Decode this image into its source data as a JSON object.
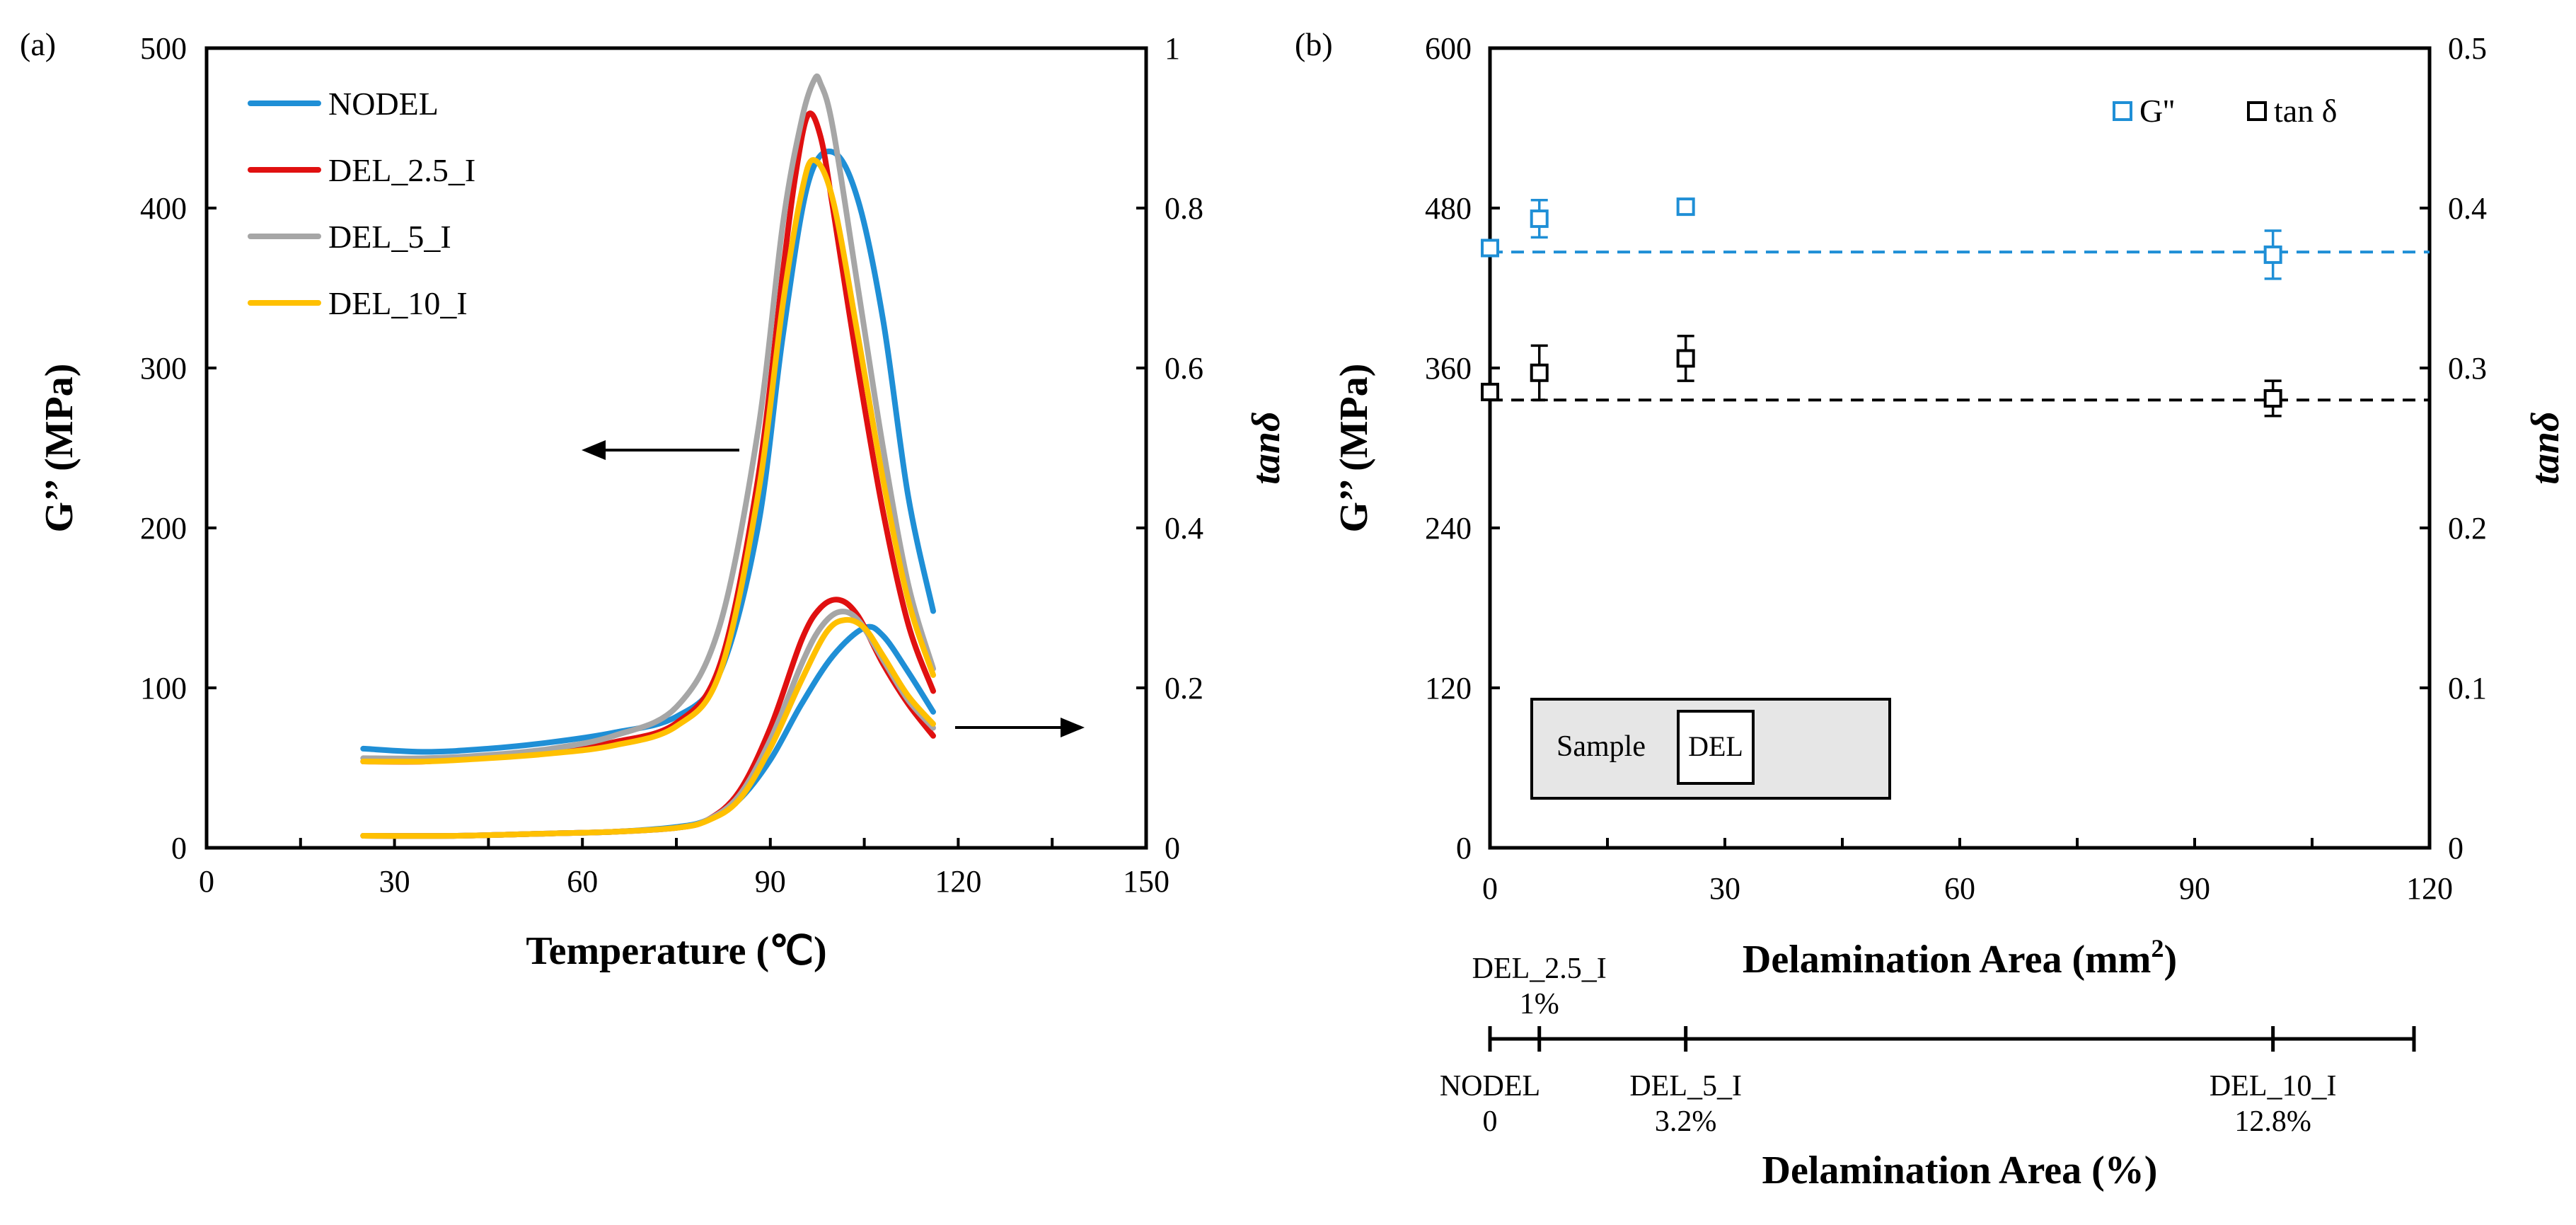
{
  "chart_data": [
    {
      "panel": "(a)",
      "type": "line",
      "title": "",
      "xlabel": "Temperature (℃)",
      "ylabel": "G’’ (MPa)",
      "y2label": "tanδ",
      "xlim": [
        0,
        150
      ],
      "xticks": [
        0,
        30,
        60,
        90,
        120,
        150
      ],
      "ylim": [
        0,
        500
      ],
      "yticks": [
        0,
        100,
        200,
        300,
        400,
        500
      ],
      "y2lim": [
        0,
        1
      ],
      "y2ticks": [
        "0",
        "0.2",
        "0.4",
        "0.6",
        "0.8",
        "1"
      ],
      "legend_position": "top-left",
      "legend": [
        "NODEL",
        "DEL_2.5_I",
        "DEL_5_I",
        "DEL_10_I"
      ],
      "colors": {
        "NODEL": "#1F8FD6",
        "DEL_2.5_I": "#E01010",
        "DEL_5_I": "#A6A6A6",
        "DEL_10_I": "#FFC000"
      },
      "annotations": [
        "arrow pointing left (G’’ curves use left axis)",
        "arrow pointing right (tanδ curves use right axis)"
      ],
      "series": [
        {
          "name": "NODEL",
          "axis": "left",
          "color": "#1F8FD6",
          "x": [
            25,
            35,
            45,
            55,
            65,
            75,
            82,
            88,
            92,
            96,
            100,
            104,
            108,
            112,
            116
          ],
          "y": [
            62,
            60,
            62,
            66,
            72,
            82,
            110,
            200,
            320,
            415,
            435,
            405,
            330,
            220,
            148
          ]
        },
        {
          "name": "DEL_2.5_I",
          "axis": "left",
          "color": "#E01010",
          "x": [
            25,
            35,
            45,
            55,
            65,
            75,
            82,
            88,
            92,
            94,
            96,
            98,
            100,
            104,
            108,
            112,
            116
          ],
          "y": [
            54,
            54,
            57,
            60,
            66,
            78,
            115,
            230,
            360,
            420,
            458,
            445,
            400,
            300,
            210,
            140,
            98
          ]
        },
        {
          "name": "DEL_5_I",
          "axis": "left",
          "color": "#A6A6A6",
          "x": [
            25,
            35,
            45,
            55,
            65,
            75,
            82,
            88,
            92,
            95,
            97,
            98,
            100,
            104,
            108,
            112,
            116
          ],
          "y": [
            56,
            56,
            58,
            62,
            70,
            88,
            140,
            260,
            390,
            455,
            480,
            478,
            450,
            350,
            250,
            165,
            112
          ]
        },
        {
          "name": "DEL_10_I",
          "axis": "left",
          "color": "#FFC000",
          "x": [
            25,
            35,
            45,
            55,
            65,
            75,
            82,
            88,
            92,
            95,
            97,
            100,
            104,
            108,
            112,
            116
          ],
          "y": [
            54,
            54,
            56,
            59,
            64,
            76,
            110,
            220,
            340,
            410,
            430,
            405,
            320,
            230,
            155,
            108
          ]
        },
        {
          "name": "NODEL",
          "axis": "right",
          "color": "#1F8FD6",
          "x": [
            25,
            40,
            55,
            65,
            75,
            80,
            85,
            90,
            95,
            100,
            105,
            108,
            112,
            116
          ],
          "y": [
            0.015,
            0.015,
            0.018,
            0.02,
            0.026,
            0.035,
            0.06,
            0.11,
            0.18,
            0.24,
            0.275,
            0.265,
            0.22,
            0.17
          ]
        },
        {
          "name": "DEL_2.5_I",
          "axis": "right",
          "color": "#E01010",
          "x": [
            25,
            40,
            55,
            65,
            75,
            80,
            85,
            90,
            95,
            98,
            101,
            104,
            108,
            112,
            116
          ],
          "y": [
            0.015,
            0.015,
            0.018,
            0.02,
            0.025,
            0.035,
            0.07,
            0.15,
            0.26,
            0.3,
            0.31,
            0.29,
            0.23,
            0.18,
            0.14
          ]
        },
        {
          "name": "DEL_5_I",
          "axis": "right",
          "color": "#A6A6A6",
          "x": [
            25,
            40,
            55,
            65,
            75,
            80,
            85,
            90,
            95,
            98,
            101,
            104,
            108,
            112,
            116
          ],
          "y": [
            0.015,
            0.015,
            0.018,
            0.02,
            0.025,
            0.035,
            0.065,
            0.135,
            0.23,
            0.275,
            0.295,
            0.285,
            0.235,
            0.185,
            0.15
          ]
        },
        {
          "name": "DEL_10_I",
          "axis": "right",
          "color": "#FFC000",
          "x": [
            25,
            40,
            55,
            65,
            75,
            80,
            85,
            90,
            95,
            99,
            102,
            105,
            108,
            112,
            116
          ],
          "y": [
            0.015,
            0.015,
            0.018,
            0.02,
            0.025,
            0.034,
            0.06,
            0.125,
            0.21,
            0.27,
            0.285,
            0.275,
            0.24,
            0.19,
            0.155
          ]
        }
      ]
    },
    {
      "panel": "(b)",
      "type": "scatter",
      "title": "",
      "xlabel": "Delamination Area (mm",
      "xlabel_sup": "2",
      "xlabel_end": ")",
      "ylabel": "G’’ (MPa)",
      "y2label": "tanδ",
      "xlim": [
        0,
        120
      ],
      "xticks": [
        0,
        30,
        60,
        90,
        120
      ],
      "ylim": [
        0,
        600
      ],
      "yticks": [
        0,
        120,
        240,
        360,
        480,
        600
      ],
      "y2lim": [
        0,
        0.5
      ],
      "y2ticks": [
        "0",
        "0.1",
        "0.2",
        "0.3",
        "0.4",
        "0.5"
      ],
      "legend_position": "top-right",
      "legend": [
        "G''",
        "tan δ"
      ],
      "series": [
        {
          "name": "G''",
          "axis": "left",
          "color": "#1F8FD6",
          "marker": "open-square",
          "x": [
            0,
            6.3,
            25,
            100
          ],
          "y": [
            450,
            472,
            481,
            445
          ],
          "err": [
            0,
            14,
            5,
            18
          ]
        },
        {
          "name": "tan δ",
          "axis": "right",
          "color": "#000000",
          "marker": "open-square",
          "x": [
            0,
            6.3,
            25,
            100
          ],
          "y": [
            0.285,
            0.297,
            0.306,
            0.281
          ],
          "err": [
            0,
            0.017,
            0.014,
            0.011
          ]
        }
      ],
      "trendlines": [
        {
          "axis": "left",
          "color": "#1F8FD6",
          "style": "dashed",
          "y": 447
        },
        {
          "axis": "right",
          "color": "#000000",
          "style": "dashed",
          "y": 0.28
        }
      ],
      "inset": {
        "label": "Sample",
        "box_label": "DEL"
      },
      "secondary_axis": {
        "label": "Delamination Area (%)",
        "markers": [
          {
            "x": 0,
            "name": "NODEL",
            "value": "0",
            "side": "below"
          },
          {
            "x": 6.3,
            "name": "DEL_2.5_I",
            "value": "1%",
            "side": "above"
          },
          {
            "x": 25,
            "name": "DEL_5_I",
            "value": "3.2%",
            "side": "below"
          },
          {
            "x": 100,
            "name": "DEL_10_I",
            "value": "12.8%",
            "side": "below"
          }
        ]
      }
    }
  ]
}
